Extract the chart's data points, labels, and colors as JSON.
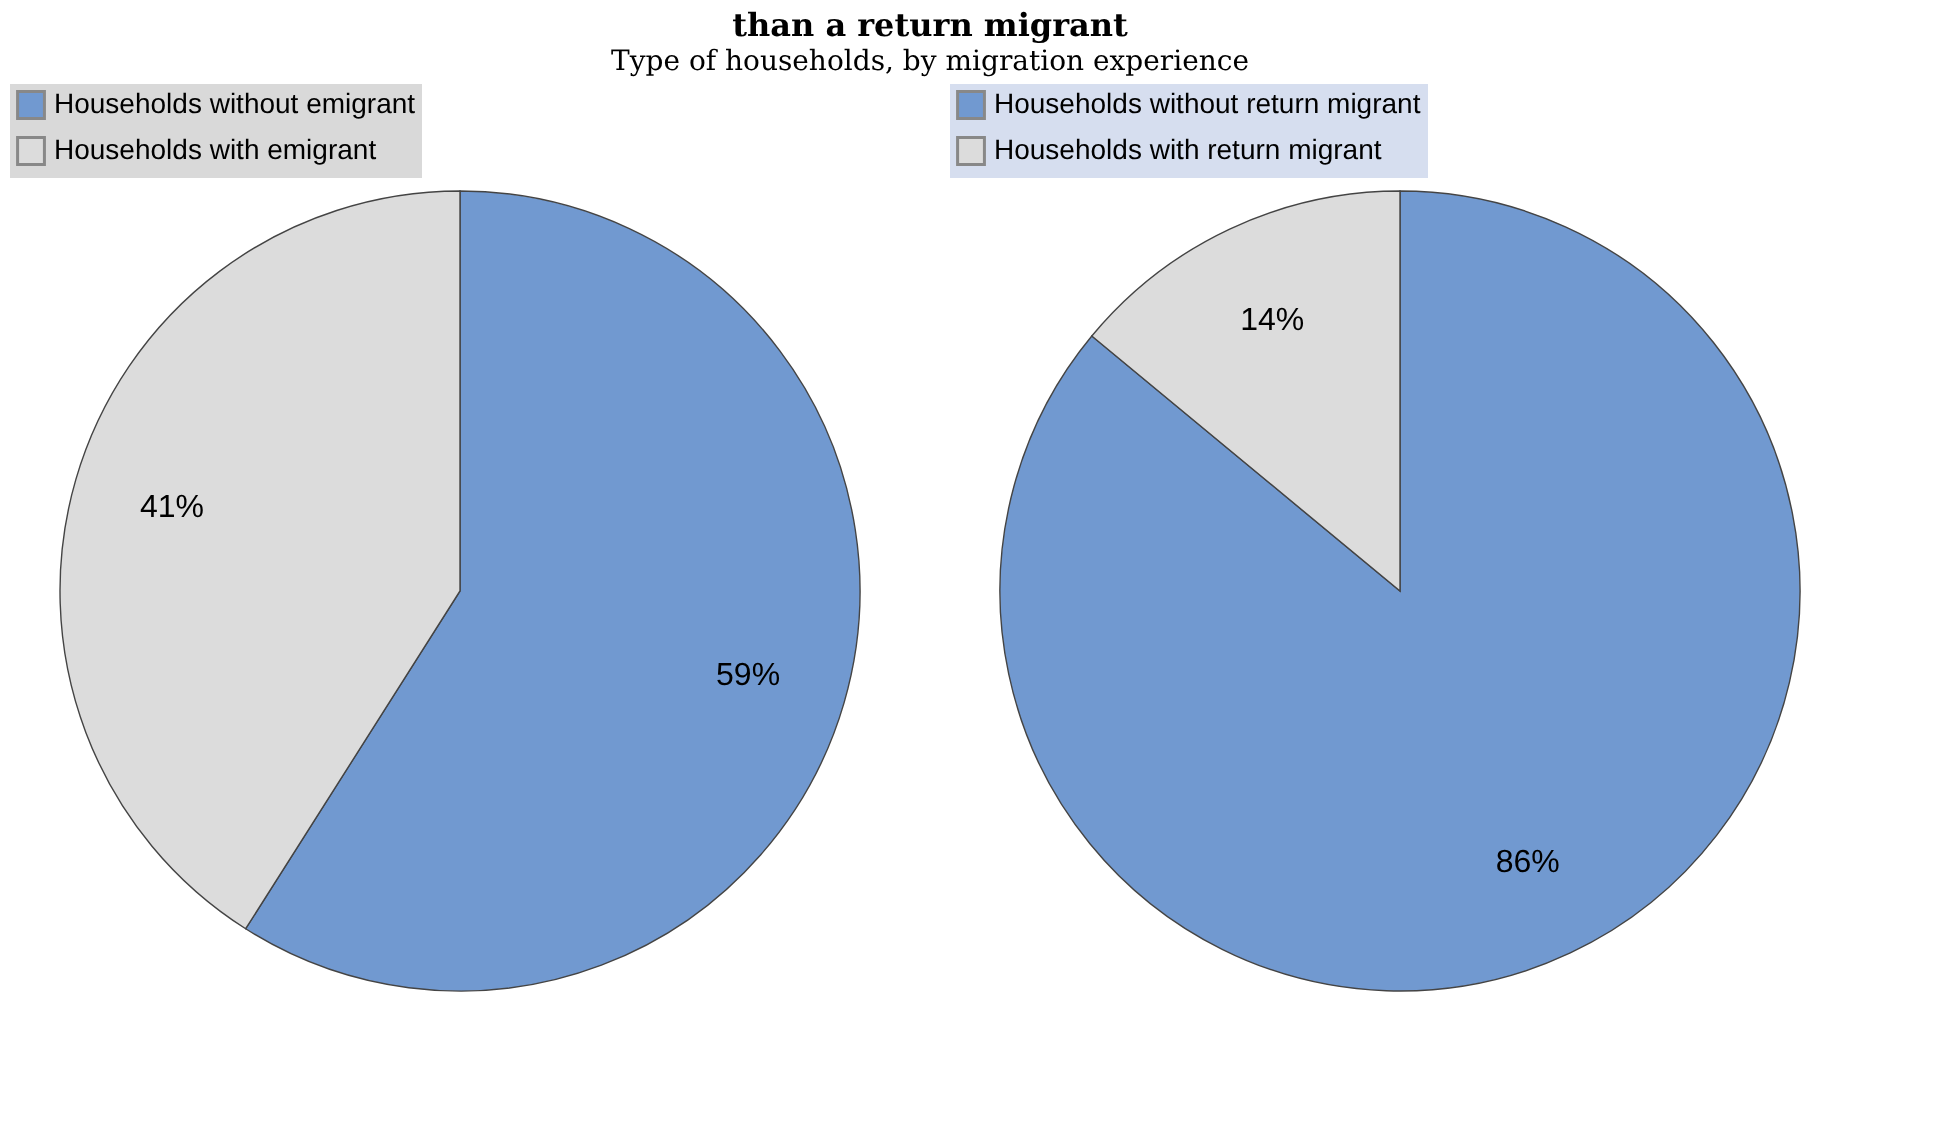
{
  "chart_data": [
    {
      "type": "pie",
      "title": "than a return migrant",
      "subtitle": "Type of households, by migration experience",
      "categories": [
        "Households without emigrant",
        "Households with emigrant"
      ],
      "values": [
        59,
        41
      ],
      "colors": [
        "#7199d0",
        "#dcdcdc"
      ],
      "value_labels": [
        "59%",
        "41%"
      ],
      "legend": "top"
    },
    {
      "type": "pie",
      "categories": [
        "Households without return migrant",
        "Households with return migrant"
      ],
      "values": [
        86,
        14
      ],
      "colors": [
        "#7199d0",
        "#dcdcdc"
      ],
      "value_labels": [
        "86%",
        "14%"
      ],
      "legend": "top"
    }
  ]
}
